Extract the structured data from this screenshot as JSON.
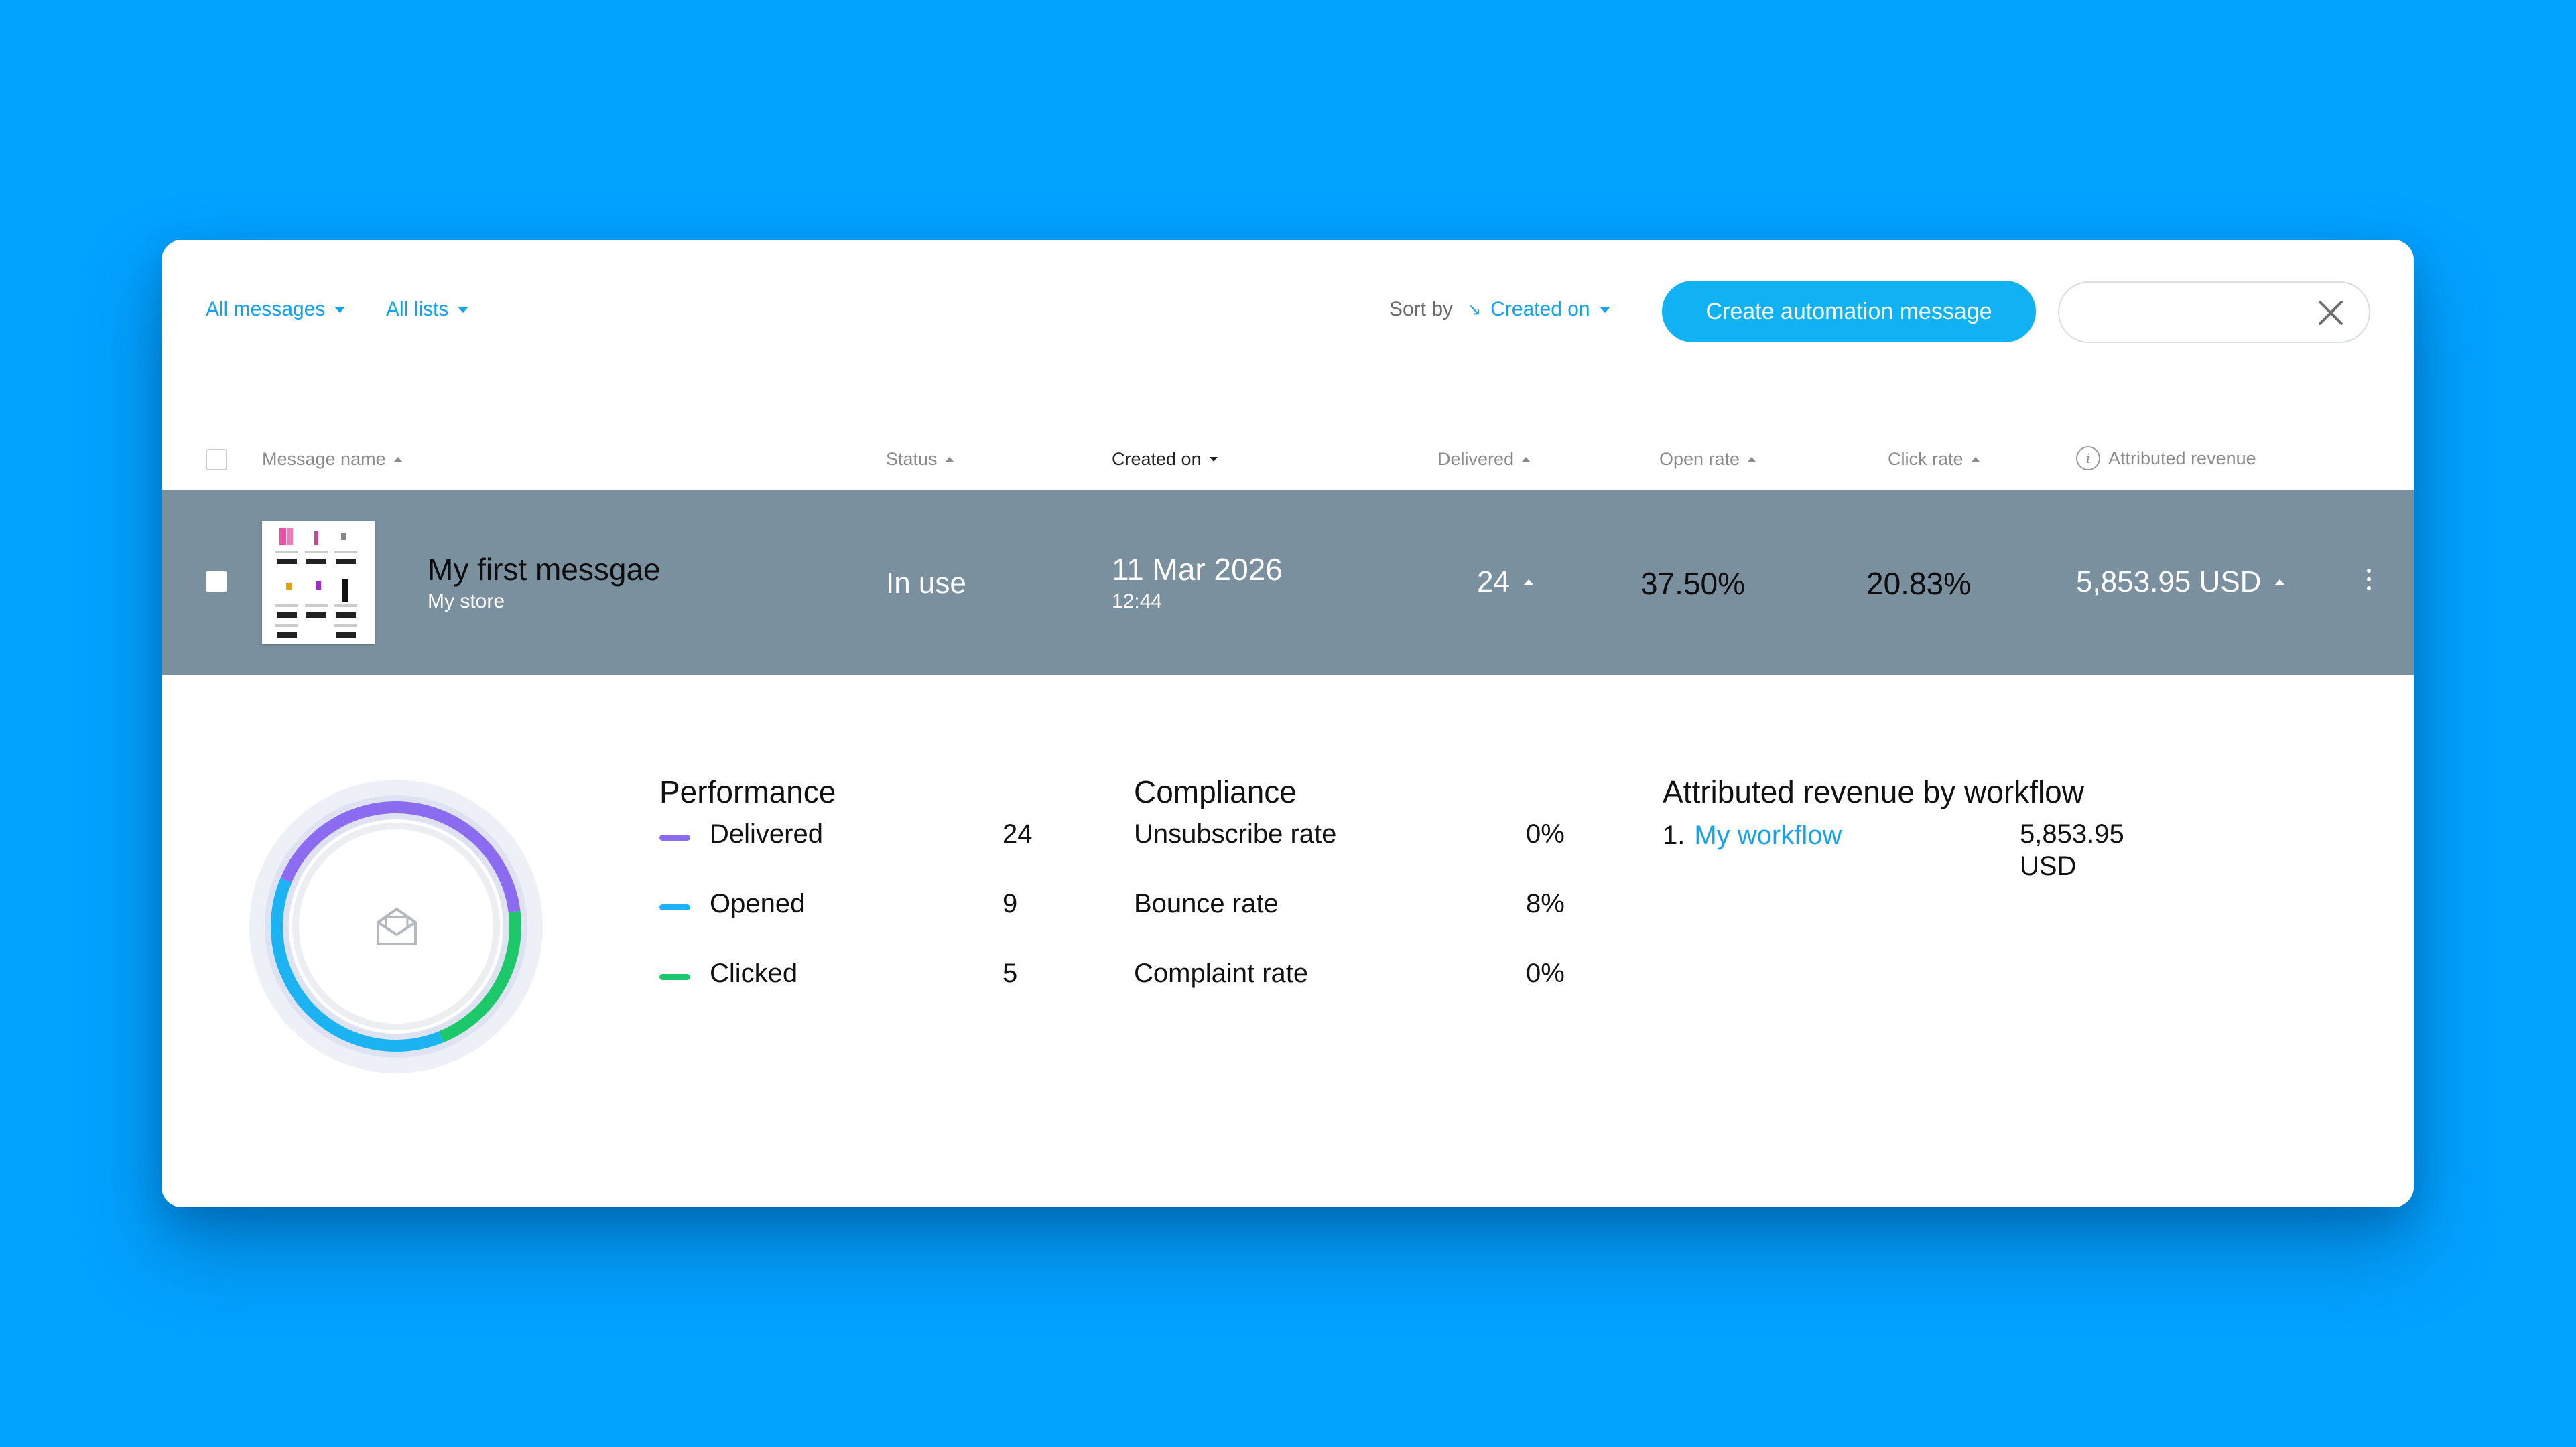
{
  "toolbar": {
    "filter_messages": "All messages",
    "filter_lists": "All lists",
    "sort_label": "Sort by",
    "sort_value": "Created on",
    "create_button": "Create automation message",
    "search_value": ""
  },
  "table": {
    "columns": {
      "message_name": "Message name",
      "status": "Status",
      "created_on": "Created on",
      "delivered": "Delivered",
      "open_rate": "Open rate",
      "click_rate": "Click rate",
      "attributed_revenue": "Attributed revenue"
    },
    "row": {
      "name": "My first messgae",
      "store": "My store",
      "status": "In use",
      "date": "11 Mar 2026",
      "time": "12:44",
      "delivered": "24",
      "open_rate": "37.50%",
      "click_rate": "20.83%",
      "revenue": "5,853.95 USD"
    }
  },
  "performance": {
    "title": "Performance",
    "items": [
      {
        "label": "Delivered",
        "value": "24",
        "color": "#8b6cf0"
      },
      {
        "label": "Opened",
        "value": "9",
        "color": "#1cb3f2"
      },
      {
        "label": "Clicked",
        "value": "5",
        "color": "#1dc86b"
      }
    ]
  },
  "compliance": {
    "title": "Compliance",
    "items": [
      {
        "label": "Unsubscribe rate",
        "value": "0%"
      },
      {
        "label": "Bounce rate",
        "value": "8%"
      },
      {
        "label": "Complaint rate",
        "value": "0%"
      }
    ]
  },
  "revenue_by_workflow": {
    "title": "Attributed revenue by workflow",
    "items": [
      {
        "rank": "1.",
        "name": "My workflow",
        "value_amount": "5,853.95",
        "value_currency": "USD"
      }
    ]
  },
  "donut": {
    "delivered": 24,
    "opened": 9,
    "clicked": 5,
    "center_icon": "envelope-open-icon"
  },
  "colors": {
    "background": "#02a2ff",
    "accent": "#10b2f4",
    "selected_row": "#7b909f"
  }
}
